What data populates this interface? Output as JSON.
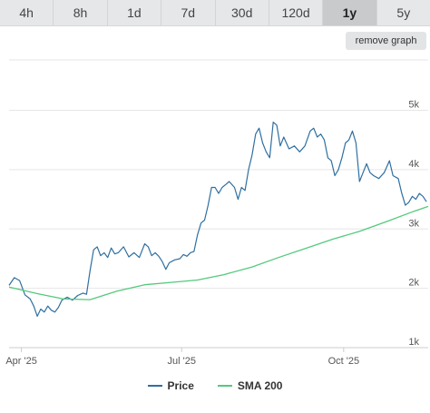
{
  "range_tabs": [
    {
      "label": "4h",
      "active": false
    },
    {
      "label": "8h",
      "active": false
    },
    {
      "label": "1d",
      "active": false
    },
    {
      "label": "7d",
      "active": false
    },
    {
      "label": "30d",
      "active": false
    },
    {
      "label": "120d",
      "active": false
    },
    {
      "label": "1y",
      "active": true
    },
    {
      "label": "5y",
      "active": false
    }
  ],
  "remove_graph_label": "remove graph",
  "colors": {
    "price": "#2f6fa0",
    "sma": "#54c97b",
    "grid": "#e6e6e6",
    "axis_text": "#555555"
  },
  "legend": {
    "price_label": "Price",
    "sma_label": "SMA 200"
  },
  "chart_data": {
    "type": "line",
    "x_ticks": [
      {
        "date": "2025-04-01",
        "label": "Apr '25"
      },
      {
        "date": "2025-07-01",
        "label": "Jul '25"
      },
      {
        "date": "2025-10-01",
        "label": "Oct '25"
      }
    ],
    "y_ticks": [
      {
        "value": 1000,
        "label": "1k"
      },
      {
        "value": 2000,
        "label": "2k"
      },
      {
        "value": 3000,
        "label": "3k"
      },
      {
        "value": 4000,
        "label": "4k"
      },
      {
        "value": 5000,
        "label": "5k"
      }
    ],
    "xlim": [
      "2025-03-25",
      "2025-11-18"
    ],
    "ylim": [
      1000,
      5850
    ],
    "grid": true,
    "series": [
      {
        "name": "Price",
        "points": [
          [
            "2025-03-25",
            2050
          ],
          [
            "2025-03-28",
            2180
          ],
          [
            "2025-03-31",
            2130
          ],
          [
            "2025-04-03",
            1890
          ],
          [
            "2025-04-06",
            1820
          ],
          [
            "2025-04-08",
            1700
          ],
          [
            "2025-04-10",
            1530
          ],
          [
            "2025-04-12",
            1650
          ],
          [
            "2025-04-14",
            1600
          ],
          [
            "2025-04-16",
            1700
          ],
          [
            "2025-04-18",
            1630
          ],
          [
            "2025-04-20",
            1600
          ],
          [
            "2025-04-22",
            1680
          ],
          [
            "2025-04-24",
            1800
          ],
          [
            "2025-04-27",
            1850
          ],
          [
            "2025-04-30",
            1800
          ],
          [
            "2025-05-03",
            1880
          ],
          [
            "2025-05-06",
            1920
          ],
          [
            "2025-05-08",
            1900
          ],
          [
            "2025-05-10",
            2300
          ],
          [
            "2025-05-12",
            2650
          ],
          [
            "2025-05-14",
            2700
          ],
          [
            "2025-05-16",
            2550
          ],
          [
            "2025-05-18",
            2600
          ],
          [
            "2025-05-20",
            2520
          ],
          [
            "2025-05-22",
            2680
          ],
          [
            "2025-05-24",
            2580
          ],
          [
            "2025-05-26",
            2600
          ],
          [
            "2025-05-29",
            2700
          ],
          [
            "2025-06-01",
            2530
          ],
          [
            "2025-06-04",
            2600
          ],
          [
            "2025-06-07",
            2520
          ],
          [
            "2025-06-10",
            2750
          ],
          [
            "2025-06-12",
            2700
          ],
          [
            "2025-06-14",
            2550
          ],
          [
            "2025-06-16",
            2600
          ],
          [
            "2025-06-18",
            2540
          ],
          [
            "2025-06-20",
            2450
          ],
          [
            "2025-06-22",
            2320
          ],
          [
            "2025-06-24",
            2430
          ],
          [
            "2025-06-27",
            2480
          ],
          [
            "2025-06-30",
            2500
          ],
          [
            "2025-07-02",
            2570
          ],
          [
            "2025-07-04",
            2540
          ],
          [
            "2025-07-06",
            2600
          ],
          [
            "2025-07-08",
            2620
          ],
          [
            "2025-07-10",
            2900
          ],
          [
            "2025-07-12",
            3100
          ],
          [
            "2025-07-14",
            3150
          ],
          [
            "2025-07-16",
            3400
          ],
          [
            "2025-07-18",
            3700
          ],
          [
            "2025-07-20",
            3700
          ],
          [
            "2025-07-22",
            3600
          ],
          [
            "2025-07-24",
            3700
          ],
          [
            "2025-07-26",
            3750
          ],
          [
            "2025-07-28",
            3800
          ],
          [
            "2025-07-31",
            3700
          ],
          [
            "2025-08-02",
            3500
          ],
          [
            "2025-08-04",
            3700
          ],
          [
            "2025-08-06",
            3650
          ],
          [
            "2025-08-08",
            4000
          ],
          [
            "2025-08-10",
            4250
          ],
          [
            "2025-08-12",
            4600
          ],
          [
            "2025-08-14",
            4700
          ],
          [
            "2025-08-16",
            4450
          ],
          [
            "2025-08-18",
            4300
          ],
          [
            "2025-08-20",
            4200
          ],
          [
            "2025-08-22",
            4800
          ],
          [
            "2025-08-24",
            4750
          ],
          [
            "2025-08-26",
            4400
          ],
          [
            "2025-08-28",
            4550
          ],
          [
            "2025-08-31",
            4350
          ],
          [
            "2025-09-03",
            4400
          ],
          [
            "2025-09-06",
            4300
          ],
          [
            "2025-09-09",
            4400
          ],
          [
            "2025-09-12",
            4650
          ],
          [
            "2025-09-14",
            4700
          ],
          [
            "2025-09-16",
            4550
          ],
          [
            "2025-09-18",
            4600
          ],
          [
            "2025-09-20",
            4500
          ],
          [
            "2025-09-22",
            4200
          ],
          [
            "2025-09-24",
            4150
          ],
          [
            "2025-09-26",
            3900
          ],
          [
            "2025-09-28",
            4000
          ],
          [
            "2025-09-30",
            4200
          ],
          [
            "2025-10-02",
            4450
          ],
          [
            "2025-10-04",
            4500
          ],
          [
            "2025-10-06",
            4650
          ],
          [
            "2025-10-08",
            4450
          ],
          [
            "2025-10-10",
            3800
          ],
          [
            "2025-10-12",
            3950
          ],
          [
            "2025-10-14",
            4100
          ],
          [
            "2025-10-16",
            3950
          ],
          [
            "2025-10-18",
            3900
          ],
          [
            "2025-10-21",
            3850
          ],
          [
            "2025-10-24",
            3950
          ],
          [
            "2025-10-27",
            4150
          ],
          [
            "2025-10-29",
            3900
          ],
          [
            "2025-11-01",
            3850
          ],
          [
            "2025-11-03",
            3600
          ],
          [
            "2025-11-05",
            3400
          ],
          [
            "2025-11-07",
            3450
          ],
          [
            "2025-11-09",
            3550
          ],
          [
            "2025-11-11",
            3500
          ],
          [
            "2025-11-13",
            3600
          ],
          [
            "2025-11-15",
            3550
          ],
          [
            "2025-11-17",
            3460
          ]
        ]
      },
      {
        "name": "SMA 200",
        "points": [
          [
            "2025-03-25",
            2020
          ],
          [
            "2025-04-10",
            1910
          ],
          [
            "2025-04-25",
            1820
          ],
          [
            "2025-05-10",
            1810
          ],
          [
            "2025-05-25",
            1950
          ],
          [
            "2025-06-10",
            2060
          ],
          [
            "2025-06-25",
            2100
          ],
          [
            "2025-07-10",
            2140
          ],
          [
            "2025-07-25",
            2230
          ],
          [
            "2025-08-10",
            2360
          ],
          [
            "2025-08-25",
            2520
          ],
          [
            "2025-09-10",
            2680
          ],
          [
            "2025-09-25",
            2830
          ],
          [
            "2025-10-10",
            2960
          ],
          [
            "2025-10-25",
            3120
          ],
          [
            "2025-11-10",
            3300
          ],
          [
            "2025-11-18",
            3380
          ]
        ]
      }
    ]
  }
}
